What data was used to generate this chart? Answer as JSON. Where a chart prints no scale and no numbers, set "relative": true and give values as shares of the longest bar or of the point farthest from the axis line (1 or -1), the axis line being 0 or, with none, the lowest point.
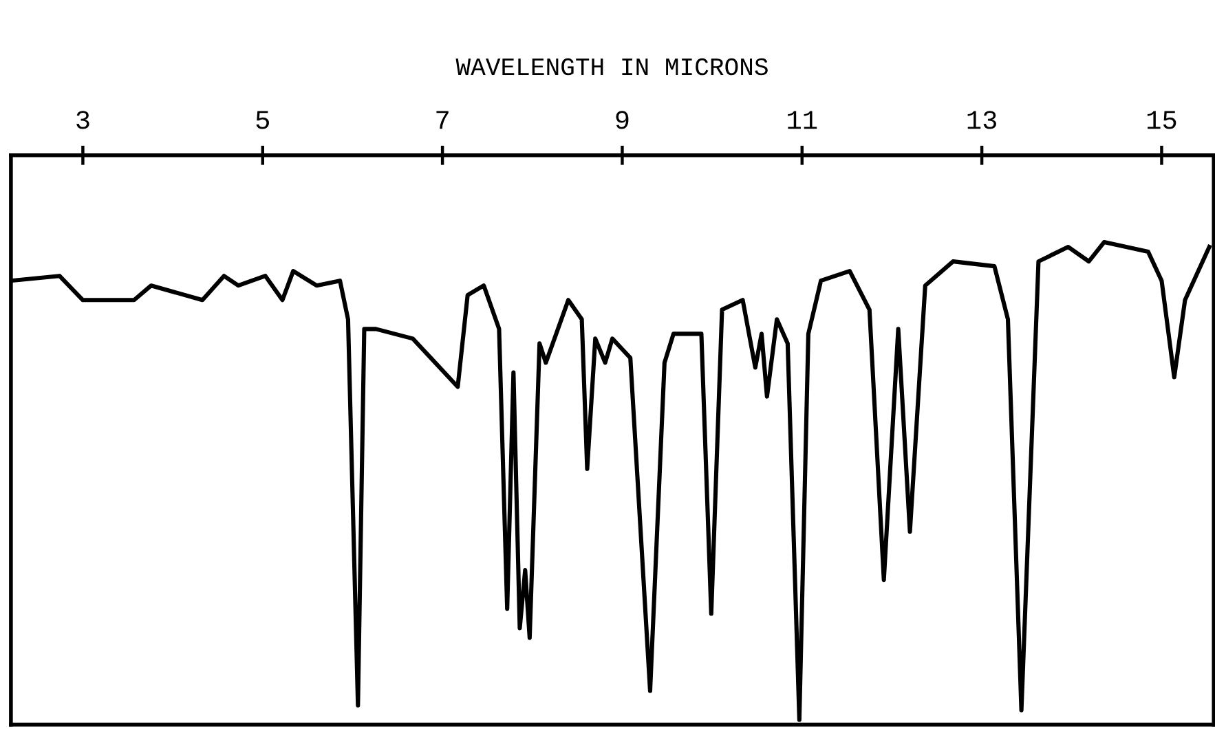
{
  "chart_data": {
    "type": "line",
    "xlabel": "WAVELENGTH IN MICRONS",
    "relative": true,
    "color": "#000000",
    "grid": false,
    "legend": false,
    "marker": "none",
    "line_style": "solid",
    "xlim": [
      2.2,
      15.58
    ],
    "xticks": [
      3,
      5,
      7,
      9,
      11,
      13,
      15
    ],
    "x": [
      2.2,
      2.74,
      3.0,
      3.28,
      3.57,
      3.76,
      4.33,
      4.57,
      4.73,
      5.03,
      5.22,
      5.34,
      5.6,
      5.86,
      5.95,
      6.06,
      6.13,
      6.26,
      6.67,
      6.87,
      7.17,
      7.28,
      7.46,
      7.63,
      7.72,
      7.79,
      7.86,
      7.92,
      7.97,
      8.08,
      8.15,
      8.4,
      8.55,
      8.61,
      8.7,
      8.81,
      8.89,
      9.09,
      9.31,
      9.47,
      9.57,
      9.88,
      9.99,
      10.11,
      10.34,
      10.48,
      10.55,
      10.61,
      10.72,
      10.84,
      10.97,
      11.07,
      11.21,
      11.53,
      11.75,
      11.91,
      12.07,
      12.2,
      12.37,
      12.68,
      13.14,
      13.29,
      13.44,
      13.63,
      13.96,
      14.19,
      14.36,
      14.85,
      15.0,
      15.14,
      15.26,
      15.53
    ],
    "values": [
      0.92,
      0.93,
      0.88,
      0.88,
      0.88,
      0.91,
      0.88,
      0.93,
      0.91,
      0.93,
      0.88,
      0.94,
      0.91,
      0.92,
      0.84,
      0.04,
      0.82,
      0.82,
      0.8,
      0.76,
      0.7,
      0.89,
      0.91,
      0.82,
      0.24,
      0.73,
      0.2,
      0.32,
      0.18,
      0.79,
      0.75,
      0.88,
      0.84,
      0.53,
      0.8,
      0.75,
      0.8,
      0.76,
      0.07,
      0.75,
      0.81,
      0.81,
      0.23,
      0.86,
      0.88,
      0.74,
      0.81,
      0.68,
      0.84,
      0.79,
      0.01,
      0.81,
      0.92,
      0.94,
      0.86,
      0.3,
      0.82,
      0.4,
      0.91,
      0.96,
      0.95,
      0.84,
      0.03,
      0.96,
      0.99,
      0.96,
      1.0,
      0.98,
      0.92,
      0.72,
      0.88,
      0.99
    ]
  }
}
